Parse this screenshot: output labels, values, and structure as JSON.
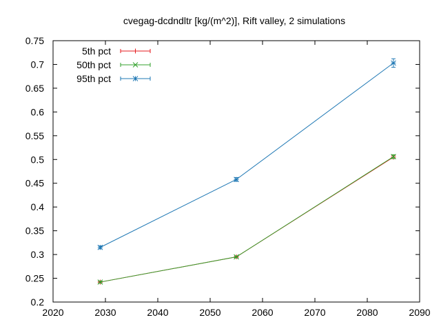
{
  "chart_data": {
    "type": "line",
    "title": "cvegag-dcdndltr [kg/(m^2)], Rift valley, 2 simulations",
    "xlabel": "",
    "ylabel": "",
    "xlim": [
      2020,
      2090
    ],
    "ylim": [
      0.2,
      0.75
    ],
    "x_ticks": [
      "2020",
      "2030",
      "2040",
      "2050",
      "2060",
      "2070",
      "2080",
      "2090"
    ],
    "y_ticks": [
      "0.2",
      "0.25",
      "0.3",
      "0.35",
      "0.4",
      "0.45",
      "0.5",
      "0.55",
      "0.6",
      "0.65",
      "0.7",
      "0.75"
    ],
    "grid": false,
    "legend_position": "top-left",
    "series": [
      {
        "name": "5th pct",
        "color": "#e41a1c",
        "marker": "plus",
        "x": [
          2029,
          2055,
          2085
        ],
        "y": [
          0.242,
          0.295,
          0.505
        ],
        "err": [
          0.002,
          0.002,
          0.003
        ]
      },
      {
        "name": "50th pct",
        "color": "#33a02c",
        "marker": "cross",
        "x": [
          2029,
          2055,
          2085
        ],
        "y": [
          0.242,
          0.295,
          0.506
        ],
        "err": [
          0.002,
          0.002,
          0.004
        ]
      },
      {
        "name": "95th pct",
        "color": "#1f78b4",
        "marker": "star",
        "x": [
          2029,
          2055,
          2085
        ],
        "y": [
          0.315,
          0.458,
          0.703
        ],
        "err": [
          0.003,
          0.004,
          0.009
        ]
      }
    ]
  }
}
